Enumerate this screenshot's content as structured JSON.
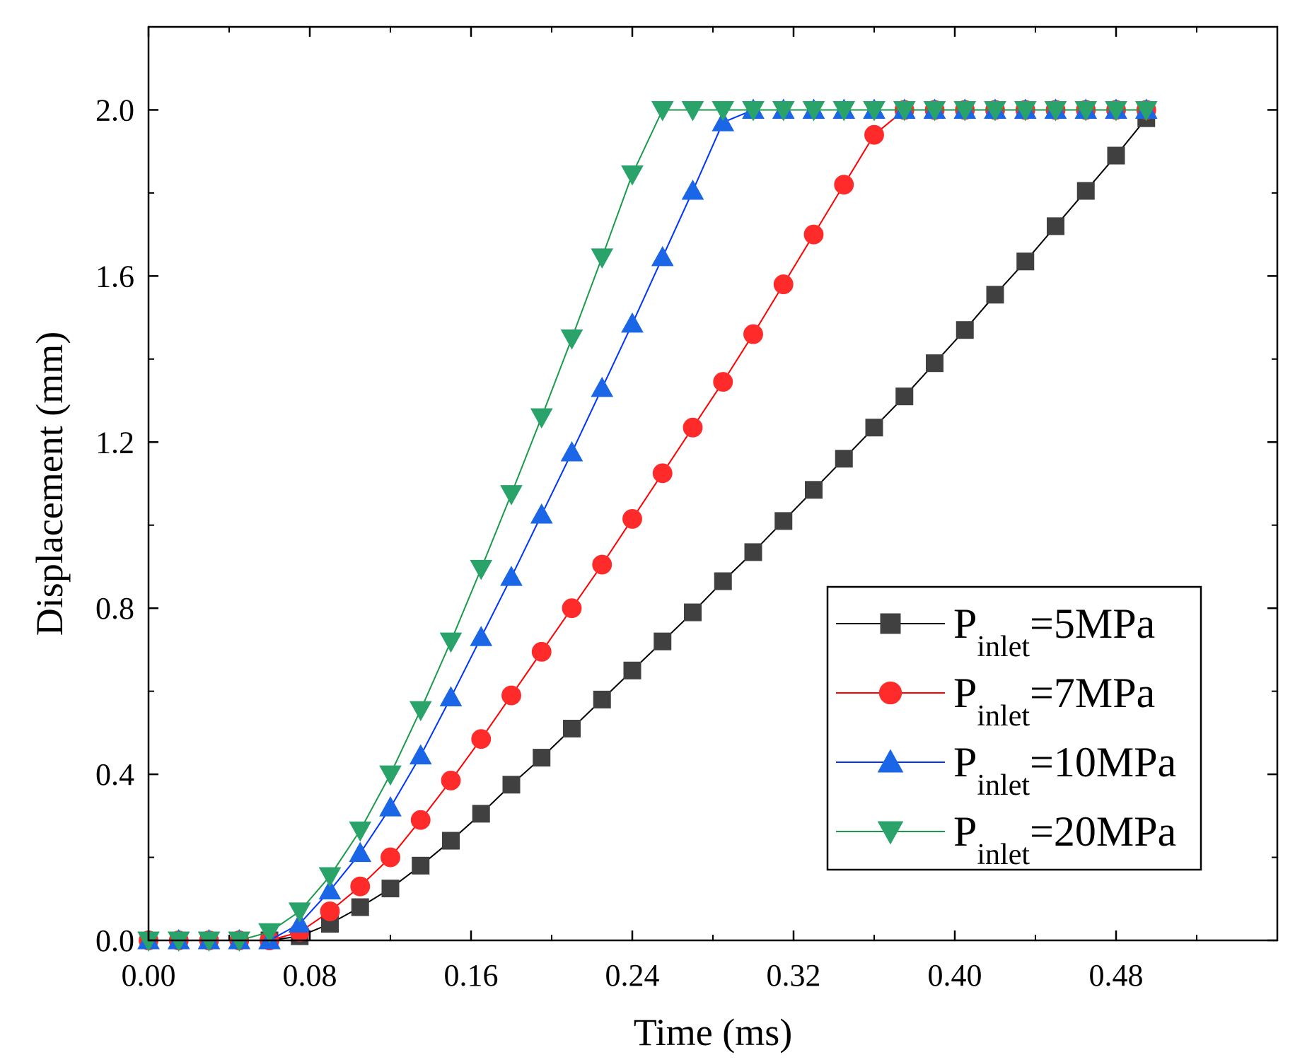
{
  "chart_data": {
    "type": "line",
    "title": "",
    "xlabel": "Time (ms)",
    "ylabel": "Displacement (mm)",
    "xlim": [
      0,
      0.56
    ],
    "ylim": [
      0,
      2.2
    ],
    "xticks": [
      "0.00",
      "0.08",
      "0.16",
      "0.24",
      "0.32",
      "0.40",
      "0.48"
    ],
    "yticks": [
      "0.0",
      "0.4",
      "0.8",
      "1.2",
      "1.6",
      "2.0"
    ],
    "legend_position": "lower-right",
    "series": [
      {
        "name": "P_inlet=5MPa",
        "label_main": "P",
        "label_sub": "inlet",
        "label_rest": "=5MPa",
        "color": "#404040",
        "line_color": "#000000",
        "marker": "square",
        "x": [
          0.0,
          0.015,
          0.03,
          0.045,
          0.06,
          0.075,
          0.09,
          0.105,
          0.12,
          0.135,
          0.15,
          0.165,
          0.18,
          0.195,
          0.21,
          0.225,
          0.24,
          0.255,
          0.27,
          0.285,
          0.3,
          0.315,
          0.33,
          0.345,
          0.36,
          0.375,
          0.39,
          0.405,
          0.42,
          0.435,
          0.45,
          0.465,
          0.48,
          0.495
        ],
        "y": [
          0.0,
          0.0,
          0.0,
          0.0,
          0.0,
          0.01,
          0.04,
          0.08,
          0.125,
          0.18,
          0.24,
          0.305,
          0.375,
          0.44,
          0.51,
          0.58,
          0.65,
          0.72,
          0.79,
          0.865,
          0.935,
          1.01,
          1.085,
          1.16,
          1.235,
          1.31,
          1.39,
          1.47,
          1.555,
          1.635,
          1.72,
          1.805,
          1.89,
          1.98
        ]
      },
      {
        "name": "P_inlet=7MPa",
        "label_main": "P",
        "label_sub": "inlet",
        "label_rest": "=7MPa",
        "color": "#ff2a2a",
        "line_color": "#ff0000",
        "marker": "circle",
        "x": [
          0.0,
          0.015,
          0.03,
          0.045,
          0.06,
          0.075,
          0.09,
          0.105,
          0.12,
          0.135,
          0.15,
          0.165,
          0.18,
          0.195,
          0.21,
          0.225,
          0.24,
          0.255,
          0.27,
          0.285,
          0.3,
          0.315,
          0.33,
          0.345,
          0.36,
          0.375,
          0.39,
          0.405,
          0.42,
          0.435,
          0.45,
          0.465,
          0.48,
          0.495
        ],
        "y": [
          0.0,
          0.0,
          0.0,
          0.0,
          0.0,
          0.02,
          0.07,
          0.13,
          0.2,
          0.29,
          0.385,
          0.485,
          0.59,
          0.695,
          0.8,
          0.905,
          1.015,
          1.125,
          1.235,
          1.345,
          1.46,
          1.58,
          1.7,
          1.82,
          1.94,
          2.0,
          2.0,
          2.0,
          2.0,
          2.0,
          2.0,
          2.0,
          2.0,
          2.0
        ]
      },
      {
        "name": "P_inlet=10MPa",
        "label_main": "P",
        "label_sub": "inlet",
        "label_rest": "=10MPa",
        "color": "#1a66e6",
        "line_color": "#0033ff",
        "marker": "triangle-up",
        "x": [
          0.0,
          0.015,
          0.03,
          0.045,
          0.06,
          0.075,
          0.09,
          0.105,
          0.12,
          0.135,
          0.15,
          0.165,
          0.18,
          0.195,
          0.21,
          0.225,
          0.24,
          0.255,
          0.27,
          0.285,
          0.3,
          0.315,
          0.33,
          0.345,
          0.36,
          0.375,
          0.39,
          0.405,
          0.42,
          0.435,
          0.45,
          0.465,
          0.48,
          0.495
        ],
        "y": [
          0.0,
          0.0,
          0.0,
          0.0,
          0.0,
          0.04,
          0.12,
          0.21,
          0.32,
          0.445,
          0.585,
          0.73,
          0.875,
          1.025,
          1.175,
          1.33,
          1.485,
          1.645,
          1.805,
          1.97,
          2.0,
          2.0,
          2.0,
          2.0,
          2.0,
          2.0,
          2.0,
          2.0,
          2.0,
          2.0,
          2.0,
          2.0,
          2.0,
          2.0
        ]
      },
      {
        "name": "P_inlet=20MPa",
        "label_main": "P",
        "label_sub": "inlet",
        "label_rest": "=20MPa",
        "color": "#2aa36b",
        "line_color": "#1a9a4a",
        "marker": "triangle-down",
        "x": [
          0.0,
          0.015,
          0.03,
          0.045,
          0.06,
          0.075,
          0.09,
          0.105,
          0.12,
          0.135,
          0.15,
          0.165,
          0.18,
          0.195,
          0.21,
          0.225,
          0.24,
          0.255,
          0.27,
          0.285,
          0.3,
          0.315,
          0.33,
          0.345,
          0.36,
          0.375,
          0.39,
          0.405,
          0.42,
          0.435,
          0.45,
          0.465,
          0.48,
          0.495
        ],
        "y": [
          0.0,
          0.0,
          0.0,
          0.0,
          0.02,
          0.07,
          0.155,
          0.265,
          0.4,
          0.555,
          0.72,
          0.895,
          1.075,
          1.26,
          1.45,
          1.645,
          1.845,
          2.0,
          2.0,
          2.0,
          2.0,
          2.0,
          2.0,
          2.0,
          2.0,
          2.0,
          2.0,
          2.0,
          2.0,
          2.0,
          2.0,
          2.0,
          2.0,
          2.0
        ]
      }
    ]
  }
}
